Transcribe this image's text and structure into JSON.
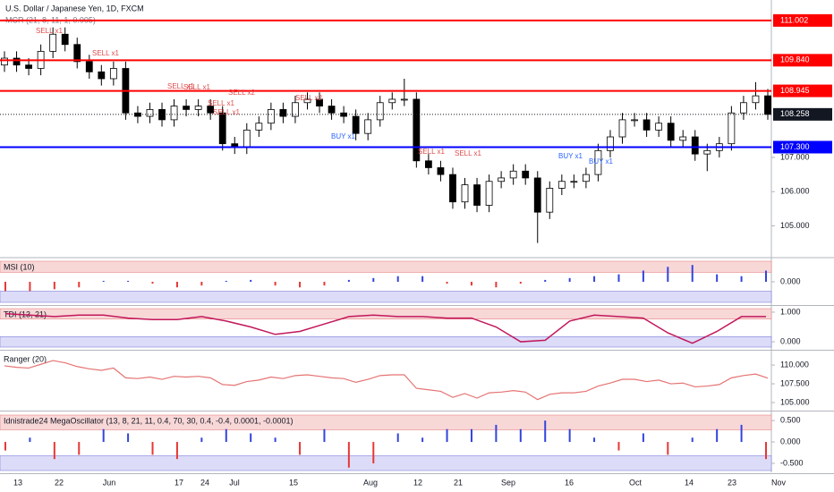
{
  "chart_data": {
    "type": "candlestick",
    "title": "U.S. Dollar / Japanese Yen, 1D, FXCM",
    "indicator": "MCR (21, 8, 11, 1, 0.005)",
    "ylim": [
      104.15,
      111.6
    ],
    "yticks": [
      {
        "value": 107,
        "label": "107.000"
      },
      {
        "value": 106,
        "label": "106.000"
      },
      {
        "value": 105,
        "label": "105.000"
      }
    ],
    "levels": [
      {
        "value": 111.002,
        "color": "#ff0000"
      },
      {
        "value": 109.84,
        "label": "109.840",
        "color": "#ff0000"
      },
      {
        "value": 108.945,
        "color": "#ff0000"
      },
      {
        "value": 107.3,
        "label": "107.300",
        "color": "#0000ff"
      },
      {
        "value": 108.258,
        "color": "#131722"
      }
    ],
    "x_labels": [
      "13",
      "22",
      "Jun",
      "17",
      "24",
      "Jul",
      "15",
      "Aug",
      "12",
      "21",
      "Sep",
      "16",
      "Oct",
      "14",
      "23",
      "Nov"
    ],
    "open": [
      109.7,
      109.9,
      109.7,
      109.6,
      110.1,
      110.6,
      110.3,
      109.8,
      109.5,
      109.3,
      109.6,
      108.3,
      108.2,
      108.4,
      108.1,
      108.5,
      108.4,
      108.5,
      108.3,
      107.4,
      107.3,
      107.8,
      108.0,
      108.4,
      108.2,
      108.6,
      108.7,
      108.5,
      108.3,
      108.2,
      107.7,
      108.1,
      108.6,
      108.7,
      108.7,
      106.9,
      106.7,
      106.5,
      105.7,
      106.2,
      105.6,
      106.3,
      106.4,
      106.6,
      106.4,
      105.4,
      106.1,
      106.3,
      106.3,
      106.5,
      107.2,
      107.6,
      108.1,
      108.1,
      107.8,
      108.0,
      107.5,
      107.6,
      107.1,
      107.2,
      107.4,
      108.3,
      108.6,
      108.8
    ],
    "high": [
      110.1,
      110.1,
      109.9,
      110.3,
      110.8,
      110.8,
      110.5,
      110.0,
      109.7,
      109.8,
      109.8,
      108.5,
      108.6,
      108.6,
      108.7,
      108.7,
      108.7,
      108.7,
      108.5,
      107.6,
      108.0,
      108.2,
      108.6,
      108.6,
      108.8,
      108.9,
      108.9,
      108.7,
      108.5,
      108.4,
      108.3,
      108.8,
      108.9,
      109.3,
      108.9,
      107.1,
      106.9,
      106.7,
      106.4,
      106.4,
      106.5,
      106.6,
      106.8,
      106.8,
      106.6,
      106.3,
      106.5,
      106.5,
      106.7,
      107.4,
      107.8,
      108.3,
      108.3,
      108.3,
      108.2,
      108.2,
      107.8,
      107.8,
      107.4,
      107.6,
      108.5,
      108.8,
      109.2,
      109.0
    ],
    "low": [
      109.5,
      109.5,
      109.4,
      109.4,
      109.9,
      110.1,
      109.6,
      109.3,
      109.1,
      109.1,
      108.1,
      108.0,
      108.0,
      107.9,
      107.9,
      108.2,
      108.2,
      108.1,
      107.2,
      107.1,
      107.1,
      107.6,
      107.8,
      108.0,
      108.0,
      108.4,
      108.3,
      108.1,
      108.0,
      107.5,
      107.5,
      107.9,
      108.4,
      108.5,
      106.7,
      106.5,
      106.3,
      105.5,
      105.5,
      105.4,
      105.4,
      106.1,
      106.2,
      106.2,
      104.5,
      105.2,
      105.9,
      106.1,
      106.1,
      106.3,
      107.0,
      107.4,
      107.9,
      107.6,
      107.6,
      107.3,
      107.3,
      106.9,
      106.6,
      107.0,
      107.2,
      108.1,
      108.4,
      108.1
    ],
    "close": [
      109.9,
      109.7,
      109.6,
      110.1,
      110.6,
      110.3,
      109.8,
      109.5,
      109.3,
      109.6,
      108.3,
      108.2,
      108.4,
      108.1,
      108.5,
      108.4,
      108.5,
      108.3,
      107.4,
      107.3,
      107.8,
      108.0,
      108.4,
      108.2,
      108.6,
      108.7,
      108.5,
      108.3,
      108.2,
      107.7,
      108.1,
      108.6,
      108.7,
      108.7,
      106.9,
      106.7,
      106.5,
      105.7,
      106.2,
      105.6,
      106.3,
      106.4,
      106.6,
      106.4,
      105.4,
      106.1,
      106.3,
      106.3,
      106.5,
      107.2,
      107.6,
      108.1,
      108.1,
      107.8,
      108.0,
      107.5,
      107.6,
      107.1,
      107.2,
      107.4,
      108.3,
      108.6,
      108.8,
      108.258
    ],
    "annotations": [
      "SELL x1",
      "SELL x1",
      "SELL x1",
      "SELL x1",
      "SELL x1",
      "SELL x2",
      "SELL x1",
      "SELL x2",
      "BUY x1",
      "SELL x1",
      "SELL x1",
      "BUY x1",
      "BUY x1"
    ],
    "panes": [
      {
        "type": "histogram",
        "title": "MSI (10)",
        "ylim": [
          -1.2,
          1.2
        ],
        "yticks": [
          {
            "value": 0,
            "label": "0.000"
          }
        ],
        "values": [
          -0.5,
          -0.5,
          -0.4,
          -0.3,
          0.05,
          0.05,
          -0.1,
          -0.3,
          -0.2,
          0.05,
          0.1,
          -0.2,
          -0.3,
          -0.2,
          0.1,
          0.2,
          0.3,
          0.3,
          -0.1,
          -0.2,
          -0.3,
          -0.1,
          0.1,
          0.2,
          0.3,
          0.4,
          0.6,
          0.8,
          0.9,
          0.4,
          0.3,
          0.6
        ]
      },
      {
        "type": "line",
        "title": "TDI (13, 21)",
        "ylim": [
          -0.24,
          1.18
        ],
        "yticks": [
          {
            "value": 1,
            "label": "1.000"
          },
          {
            "value": 0,
            "label": "0.000"
          }
        ],
        "values": [
          0.95,
          0.9,
          0.85,
          0.9,
          0.9,
          0.8,
          0.75,
          0.75,
          0.85,
          0.7,
          0.5,
          0.25,
          0.35,
          0.6,
          0.85,
          0.9,
          0.85,
          0.85,
          0.8,
          0.8,
          0.5,
          0.0,
          0.05,
          0.7,
          0.9,
          0.85,
          0.8,
          0.3,
          -0.05,
          0.35,
          0.85,
          0.85
        ]
      },
      {
        "type": "close_line",
        "title": "Ranger (20)",
        "ylim": [
          104.05,
          111.8
        ],
        "yticks": [
          {
            "value": 110,
            "label": "110.000"
          },
          {
            "value": 107.5,
            "label": "107.500"
          },
          {
            "value": 105,
            "label": "105.000"
          }
        ]
      },
      {
        "type": "histogram",
        "title": "Idnistrade24 MegaOscillator (13, 8, 21, 11, 0.4, 70, 30, 0.4, -0.4, 0.0001, -0.0001)",
        "ylim": [
          -0.71,
          0.67
        ],
        "yticks": [
          {
            "value": 0.5,
            "label": "0.500"
          },
          {
            "value": 0,
            "label": "0.000"
          },
          {
            "value": -0.5,
            "label": "-0.500"
          }
        ],
        "values": [
          -0.2,
          0.1,
          -0.4,
          -0.3,
          0.3,
          0.2,
          -0.3,
          -0.4,
          0.1,
          0.3,
          0.2,
          0.1,
          -0.3,
          0.3,
          -0.6,
          -0.5,
          0.2,
          0.1,
          0.3,
          0.3,
          0.4,
          0.3,
          0.5,
          0.3,
          0.1,
          -0.2,
          0.2,
          -0.3,
          0.1,
          0.3,
          0.4,
          -0.4
        ]
      }
    ]
  }
}
